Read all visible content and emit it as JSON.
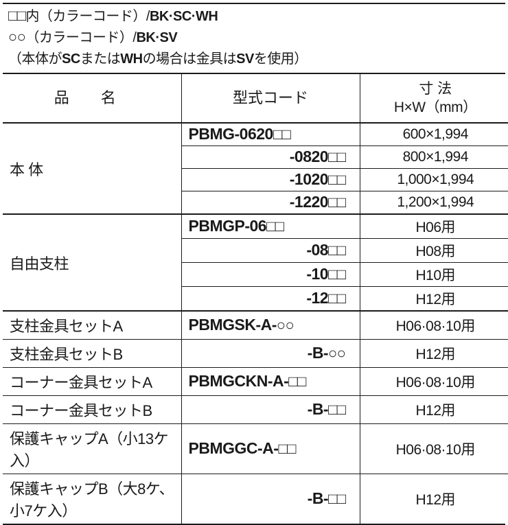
{
  "notes": {
    "line1_prefix": "内（カラーコード）/",
    "line1_codes": "BK·SC·WH",
    "line2_prefix": "（カラーコード）/",
    "line2_codes": "BK·SV",
    "line3_a": "（本体が",
    "line3_b": "SC",
    "line3_c": "または",
    "line3_d": "WH",
    "line3_e": "の場合は金具は",
    "line3_f": "SV",
    "line3_g": "を使用）"
  },
  "headers": {
    "name": "品 名",
    "code": "型式コード",
    "dim1": "寸 法",
    "dim2": "H×W（mm）"
  },
  "groups": [
    {
      "name": "本 体",
      "nameClass": "spaced",
      "rows": [
        {
          "code": "PBMG-0620",
          "suffix": "sq",
          "lead": true,
          "dim": "600×1,994"
        },
        {
          "code": "-0820",
          "suffix": "sq",
          "dim": "800×1,994"
        },
        {
          "code": "-1020",
          "suffix": "sq",
          "dim": "1,000×1,994"
        },
        {
          "code": "-1220",
          "suffix": "sq",
          "dim": "1,200×1,994"
        }
      ]
    },
    {
      "name": "自由支柱",
      "rows": [
        {
          "code": "PBMGP-06",
          "suffix": "sq",
          "lead": true,
          "dim": "H06用"
        },
        {
          "code": "-08",
          "suffix": "sq",
          "dim": "H08用"
        },
        {
          "code": "-10",
          "suffix": "sq",
          "dim": "H10用"
        },
        {
          "code": "-12",
          "suffix": "sq",
          "dim": "H12用"
        }
      ]
    }
  ],
  "singles": [
    {
      "name": "支柱金具セットA",
      "code": "PBMGSK-A-",
      "suffix": "circ",
      "lead": true,
      "dim": "H06·08·10用"
    },
    {
      "name": "支柱金具セットB",
      "code": "-B-",
      "suffix": "circ",
      "dim": "H12用"
    },
    {
      "name": "コーナー金具セットA",
      "code": "PBMGCKN-A-",
      "suffix": "sq",
      "lead": true,
      "dim": "H06·08·10用"
    },
    {
      "name": "コーナー金具セットB",
      "code": "-B-",
      "suffix": "sq",
      "dim": "H12用"
    },
    {
      "name": "保護キャップA（小13ケ入）",
      "code": "PBMGGC-A-",
      "suffix": "sq",
      "lead": true,
      "dim": "H06·08·10用"
    },
    {
      "name": "保護キャップB（大8ケ、小7ケ入）",
      "code": "-B-",
      "suffix": "sq",
      "dim": "H12用"
    }
  ]
}
